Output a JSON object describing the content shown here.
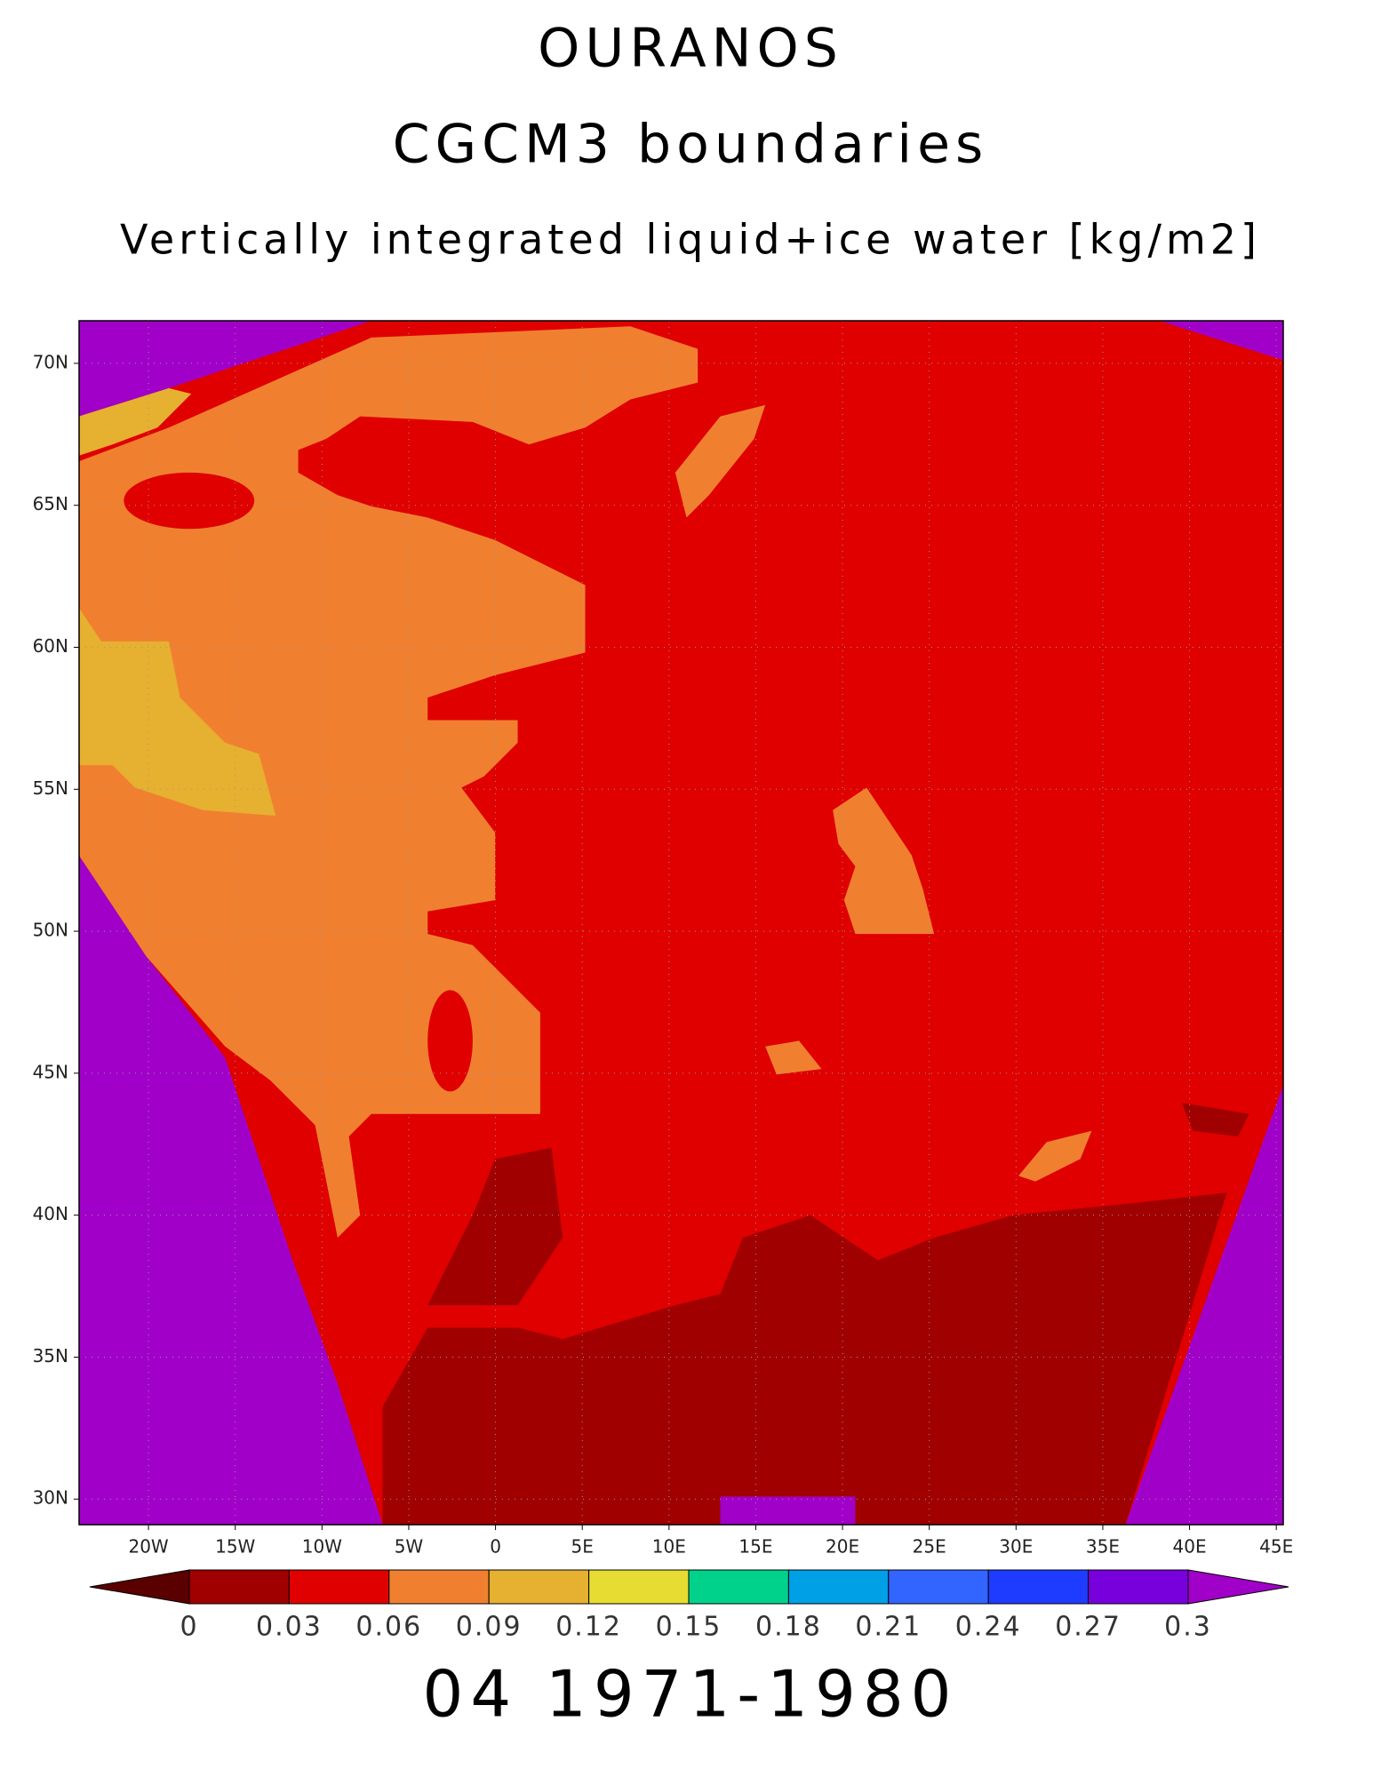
{
  "chart_data": {
    "type": "contour-map",
    "title": "OURANOS",
    "subtitle": "CGCM3 boundaries",
    "variable": "Vertically integrated liquid+ice water [kg/m2]",
    "period": "04 1971-1980",
    "xlim": [
      -24,
      45.4
    ],
    "ylim": [
      29.1,
      71.5
    ],
    "xticks": [
      {
        "value": -20,
        "label": "20W"
      },
      {
        "value": -15,
        "label": "15W"
      },
      {
        "value": -10,
        "label": "10W"
      },
      {
        "value": -5,
        "label": "5W"
      },
      0,
      {
        "value": 5,
        "label": "5E"
      },
      {
        "value": 10,
        "label": "10E"
      },
      {
        "value": 15,
        "label": "15E"
      },
      {
        "value": 20,
        "label": "20E"
      },
      {
        "value": 25,
        "label": "25E"
      },
      {
        "value": 30,
        "label": "30E"
      },
      {
        "value": 35,
        "label": "35E"
      },
      {
        "value": 40,
        "label": "40E"
      },
      {
        "value": 45,
        "label": "45E"
      }
    ],
    "yticks": [
      {
        "value": 30,
        "label": "30N"
      },
      {
        "value": 35,
        "label": "35N"
      },
      {
        "value": 40,
        "label": "40N"
      },
      {
        "value": 45,
        "label": "45N"
      },
      {
        "value": 50,
        "label": "50N"
      },
      {
        "value": 55,
        "label": "55N"
      },
      {
        "value": 60,
        "label": "60N"
      },
      {
        "value": 65,
        "label": "65N"
      },
      {
        "value": 70,
        "label": "70N"
      }
    ],
    "grid": true,
    "levels": [
      0,
      0.03,
      0.06,
      0.09,
      0.12,
      0.15,
      0.18,
      0.21,
      0.24,
      0.27,
      0.3
    ],
    "colors": [
      "#5a0000",
      "#a00000",
      "#e00000",
      "#f08030",
      "#e6b030",
      "#e6dc32",
      "#00d28c",
      "#00a0e6",
      "#3264ff",
      "#1e3cff",
      "#7800dc",
      "#a000c8"
    ]
  }
}
